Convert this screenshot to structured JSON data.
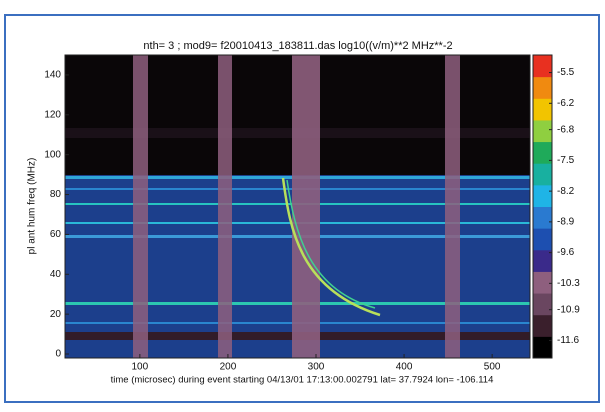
{
  "chart_data": {
    "type": "spectrogram",
    "title": "nth= 3 ; mod9=    f20010413_183811.das log10((v/m)**2 MHz**-2",
    "x_label": "time (microsec) during event starting 04/13/01 17:13:00.002791 lat= 37.7924 lon= -106.114",
    "y_label": "pl ant hum freq (MHz)",
    "xlim": [
      15,
      543
    ],
    "xticks": [
      100,
      200,
      300,
      400,
      500
    ],
    "ylim": [
      -2,
      150
    ],
    "yticks": [
      0,
      20,
      40,
      60,
      80,
      100,
      120,
      140
    ],
    "colorbar": {
      "lim": [
        -12.0,
        -5.1
      ],
      "ticks": [
        -5.5,
        -6.2,
        -6.8,
        -7.5,
        -8.2,
        -8.9,
        -9.6,
        -10.3,
        -10.9,
        -11.6
      ],
      "colors": [
        "#000000",
        "#3a1f2c",
        "#6a4660",
        "#8e5f7e",
        "#3a2a8a",
        "#1d4fb0",
        "#2a7ad0",
        "#1fb4e6",
        "#18b0a0",
        "#1faa5a",
        "#8fcf40",
        "#f2c400",
        "#f08a10",
        "#e83020"
      ]
    }
  }
}
